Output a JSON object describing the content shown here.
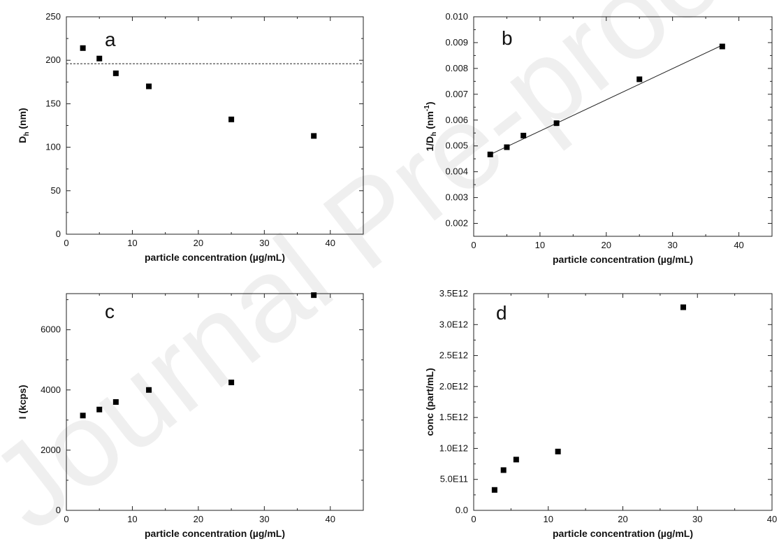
{
  "watermark": "Journal Pre-proof",
  "chart_data": [
    {
      "type": "scatter",
      "panel_label": "a",
      "xlabel": "particle concentration (µg/mL)",
      "ylabel": "D",
      "ylabel_sub": "h",
      "ylabel_tail": " (nm)",
      "xlim": [
        0,
        45
      ],
      "ylim": [
        0,
        250
      ],
      "xticks": [
        0,
        10,
        20,
        30,
        40
      ],
      "yticks": [
        0,
        50,
        100,
        150,
        200,
        250
      ],
      "x": [
        2.5,
        5,
        7.5,
        12.5,
        25,
        37.5
      ],
      "y": [
        214,
        202,
        185,
        170,
        132,
        113
      ],
      "reference_line": {
        "y": 196,
        "style": "dashed"
      },
      "grid": false
    },
    {
      "type": "scatter",
      "panel_label": "b",
      "xlabel": "particle concentration (µg/mL)",
      "ylabel": "1/D",
      "ylabel_sub": "h",
      "ylabel_tail": " (nm",
      "ylabel_sup": "-1",
      "ylabel_end": ")",
      "xlim": [
        0,
        45
      ],
      "ylim": [
        0.0015,
        0.01
      ],
      "xticks": [
        0,
        10,
        20,
        30,
        40
      ],
      "yticks": [
        0.002,
        0.003,
        0.004,
        0.005,
        0.006,
        0.007,
        0.008,
        0.009,
        0.01
      ],
      "ytick_labels": [
        "0.002",
        "0.003",
        "0.004",
        "0.005",
        "0.006",
        "0.007",
        "0.008",
        "0.009",
        "0.010"
      ],
      "x": [
        2.5,
        5,
        7.5,
        12.5,
        25,
        37.5
      ],
      "y": [
        0.00467,
        0.00495,
        0.0054,
        0.00588,
        0.00758,
        0.00885
      ],
      "fit_line": {
        "x": [
          2.5,
          37.5
        ],
        "y": [
          0.00467,
          0.0089
        ]
      },
      "grid": false
    },
    {
      "type": "scatter",
      "panel_label": "c",
      "xlabel": "particle concentration (µg/mL)",
      "ylabel": "I (kcps)",
      "xlim": [
        0,
        45
      ],
      "ylim": [
        0,
        7200
      ],
      "xticks": [
        0,
        10,
        20,
        30,
        40
      ],
      "yticks": [
        0,
        2000,
        4000,
        6000
      ],
      "x": [
        2.5,
        5,
        7.5,
        12.5,
        25,
        37.5
      ],
      "y": [
        3150,
        3350,
        3600,
        4000,
        4250,
        7150
      ],
      "grid": false
    },
    {
      "type": "scatter",
      "panel_label": "d",
      "xlabel": "particle concentration (µg/mL)",
      "ylabel": "conc (part/mL)",
      "xlim": [
        0,
        40
      ],
      "ylim": [
        0,
        3500000000000.0
      ],
      "xticks": [
        0,
        10,
        20,
        30,
        40
      ],
      "yticks": [
        0,
        500000000000.0,
        1000000000000.0,
        1500000000000.0,
        2000000000000.0,
        2500000000000.0,
        3000000000000.0,
        3500000000000.0
      ],
      "ytick_labels": [
        "0.0",
        "5.0E11",
        "1.0E12",
        "1.5E12",
        "2.0E12",
        "2.5E12",
        "3.0E12",
        "3.5E12"
      ],
      "x": [
        2.8,
        4.0,
        5.7,
        11.3,
        28.1
      ],
      "y": [
        330000000000.0,
        650000000000.0,
        820000000000.0,
        950000000000.0,
        3280000000000.0
      ],
      "grid": false
    }
  ]
}
